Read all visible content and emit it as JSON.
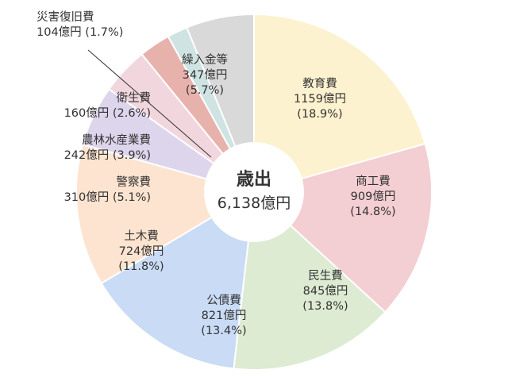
{
  "chart_data": {
    "type": "pie",
    "title": "",
    "center_label": "歳出",
    "center_total": "6,138億円",
    "slices": [
      {
        "name": "教育費",
        "value": 1159,
        "value_label": "1159億円",
        "percent_label": "(18.9%)",
        "color": "#fdf2cf"
      },
      {
        "name": "商工費",
        "value": 909,
        "value_label": "909億円",
        "percent_label": "(14.8%)",
        "color": "#f3ced2"
      },
      {
        "name": "民生費",
        "value": 845,
        "value_label": "845億円",
        "percent_label": "(13.8%)",
        "color": "#ddebd3"
      },
      {
        "name": "公債費",
        "value": 821,
        "value_label": "821億円",
        "percent_label": "(13.4%)",
        "color": "#c9dbf5"
      },
      {
        "name": "土木費",
        "value": 724,
        "value_label": "724億円",
        "percent_label": "(11.8%)",
        "color": "#fce4d0"
      },
      {
        "name": "警察費",
        "value": 310,
        "value_label": "310億円",
        "percent_label": "(5.1%)",
        "color": "#ddd5ec"
      },
      {
        "name": "農林水産業費",
        "value": 242,
        "value_label": "242億円",
        "percent_label": "(3.9%)",
        "color": "#f2d6de"
      },
      {
        "name": "衛生費",
        "value": 160,
        "value_label": "160億円",
        "percent_label": "(2.6%)",
        "color": "#e8b2ac"
      },
      {
        "name": "災害復旧費",
        "value": 104,
        "value_label": "104億円",
        "percent_label": "(1.7%)",
        "color": "#cfe3e3"
      },
      {
        "name": "繰入金等",
        "value": 347,
        "value_label": "347億円",
        "percent_label": "(5.7%)",
        "color": "#d9d9d9"
      }
    ]
  }
}
